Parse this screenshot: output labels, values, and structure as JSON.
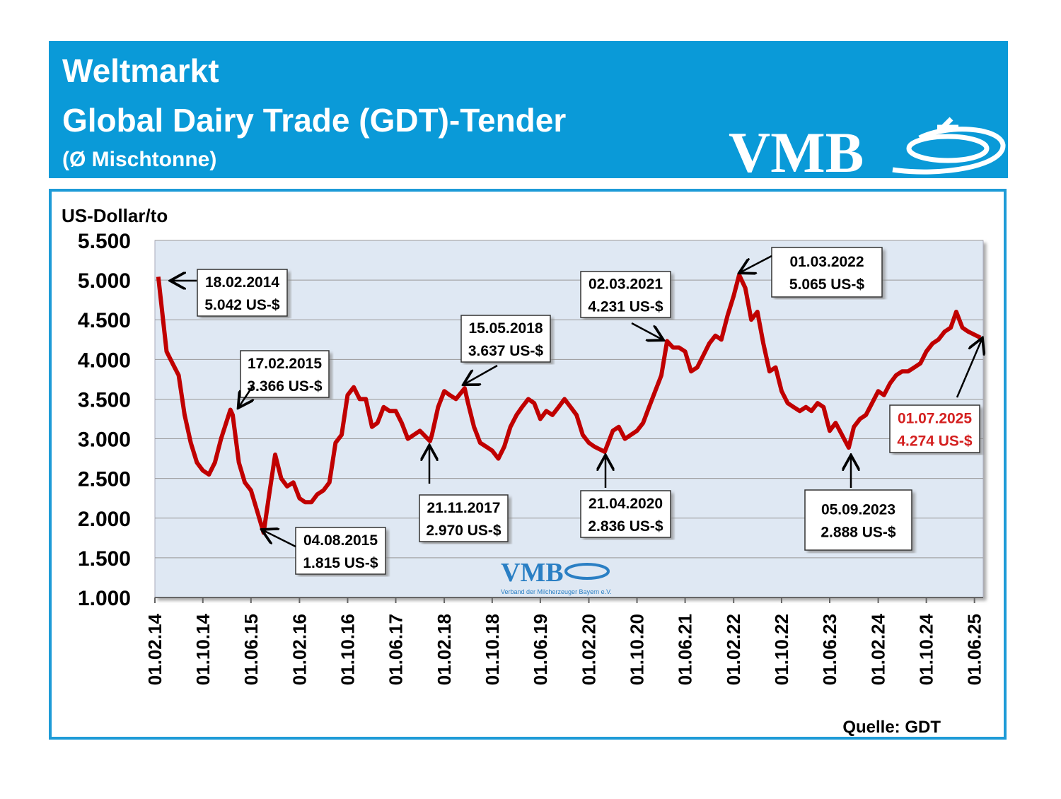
{
  "header": {
    "title": "Weltmarkt",
    "subtitle": "Global Dairy Trade (GDT)-Tender",
    "note": "(Ø Mischtonne)",
    "logo": "VMB"
  },
  "chart_data": {
    "type": "line",
    "y_label": "US-Dollar/to",
    "source": "Quelle: GDT",
    "watermark": {
      "logo": "VMB",
      "caption": "Verband der Milcherzeuger Bayern e.V."
    },
    "color": "#c00000",
    "grid": true,
    "x": [
      "18.02.14",
      "01.03.14",
      "01.04.14",
      "01.05.14",
      "01.06.14",
      "01.07.14",
      "01.08.14",
      "01.09.14",
      "01.10.14",
      "01.11.14",
      "01.12.14",
      "01.01.15",
      "17.02.15",
      "01.03.15",
      "01.04.15",
      "01.05.15",
      "01.06.15",
      "01.07.15",
      "04.08.15",
      "01.09.15",
      "01.10.15",
      "01.11.15",
      "01.12.15",
      "01.01.16",
      "01.02.16",
      "01.03.16",
      "01.04.16",
      "01.05.16",
      "01.06.16",
      "01.07.16",
      "01.08.16",
      "01.09.16",
      "01.10.16",
      "01.11.16",
      "01.12.16",
      "01.01.17",
      "01.02.17",
      "01.03.17",
      "01.04.17",
      "01.05.17",
      "01.06.17",
      "01.07.17",
      "01.08.17",
      "01.09.17",
      "01.10.17",
      "21.11.17",
      "01.12.17",
      "01.01.18",
      "01.02.18",
      "01.03.18",
      "01.04.18",
      "15.05.18",
      "01.06.18",
      "01.07.18",
      "01.08.18",
      "01.09.18",
      "01.10.18",
      "01.11.18",
      "01.12.18",
      "01.01.19",
      "01.02.19",
      "01.03.19",
      "01.04.19",
      "01.05.19",
      "01.06.19",
      "01.07.19",
      "01.08.19",
      "01.09.19",
      "01.10.19",
      "01.11.19",
      "01.12.19",
      "01.01.20",
      "01.02.20",
      "01.03.20",
      "21.04.20",
      "01.05.20",
      "01.06.20",
      "01.07.20",
      "01.08.20",
      "01.09.20",
      "01.10.20",
      "01.11.20",
      "01.12.20",
      "01.01.21",
      "01.02.21",
      "02.03.21",
      "01.04.21",
      "01.05.21",
      "01.06.21",
      "01.07.21",
      "01.08.21",
      "01.09.21",
      "01.10.21",
      "01.11.21",
      "01.12.21",
      "01.01.22",
      "01.02.22",
      "01.03.22",
      "01.04.22",
      "01.05.22",
      "01.06.22",
      "01.07.22",
      "01.08.22",
      "01.09.22",
      "01.10.22",
      "01.11.22",
      "01.12.22",
      "01.01.23",
      "01.02.23",
      "01.03.23",
      "01.04.23",
      "01.05.23",
      "01.06.23",
      "01.07.23",
      "05.09.23",
      "01.10.23",
      "01.11.23",
      "01.12.23",
      "01.01.24",
      "01.02.24",
      "01.03.24",
      "01.04.24",
      "01.05.24",
      "01.06.24",
      "01.07.24",
      "01.08.24",
      "01.09.24",
      "01.10.24",
      "01.11.24",
      "01.12.24",
      "01.01.25",
      "01.02.25",
      "01.03.25",
      "01.04.25",
      "01.05.25",
      "01.07.25"
    ],
    "values": [
      5042,
      4800,
      4100,
      3950,
      3800,
      3300,
      2950,
      2700,
      2600,
      2550,
      2700,
      3000,
      3366,
      3300,
      2700,
      2450,
      2350,
      2100,
      1815,
      2300,
      2800,
      2500,
      2400,
      2450,
      2250,
      2200,
      2200,
      2300,
      2350,
      2450,
      2950,
      3050,
      3550,
      3650,
      3500,
      3500,
      3150,
      3200,
      3400,
      3350,
      3350,
      3200,
      3000,
      3050,
      3100,
      2970,
      3050,
      3400,
      3600,
      3550,
      3500,
      3637,
      3450,
      3150,
      2950,
      2900,
      2850,
      2750,
      2900,
      3150,
      3300,
      3400,
      3500,
      3450,
      3250,
      3350,
      3300,
      3400,
      3500,
      3400,
      3300,
      3050,
      2950,
      2900,
      2836,
      2900,
      3100,
      3150,
      3000,
      3050,
      3100,
      3200,
      3400,
      3600,
      3800,
      4231,
      4150,
      4150,
      4100,
      3850,
      3900,
      4050,
      4200,
      4300,
      4250,
      4550,
      4800,
      5065,
      4900,
      4500,
      4600,
      4200,
      3850,
      3900,
      3600,
      3450,
      3400,
      3350,
      3400,
      3350,
      3450,
      3400,
      3100,
      3200,
      2888,
      3150,
      3250,
      3300,
      3450,
      3600,
      3550,
      3700,
      3800,
      3850,
      3850,
      3900,
      3950,
      4100,
      4200,
      4250,
      4350,
      4400,
      4600,
      4400,
      4350,
      4274
    ],
    "xlim": [
      "01.02.14",
      "15.07.25"
    ],
    "xticks": [
      "01.02.14",
      "01.10.14",
      "01.06.15",
      "01.02.16",
      "01.10.16",
      "01.06.17",
      "01.02.18",
      "01.10.18",
      "01.06.19",
      "01.02.20",
      "01.10.20",
      "01.06.21",
      "01.02.22",
      "01.10.22",
      "01.06.23",
      "01.02.24",
      "01.10.24",
      "01.06.25"
    ],
    "ylim": [
      1000,
      5500
    ],
    "yticks": [
      {
        "value": 1000,
        "label": "1.000"
      },
      {
        "value": 1500,
        "label": "1.500"
      },
      {
        "value": 2000,
        "label": "2.000"
      },
      {
        "value": 2500,
        "label": "2.500"
      },
      {
        "value": 3000,
        "label": "3.000"
      },
      {
        "value": 3500,
        "label": "3.500"
      },
      {
        "value": 4000,
        "label": "4.000"
      },
      {
        "value": 4500,
        "label": "4.500"
      },
      {
        "value": 5000,
        "label": "5.000"
      },
      {
        "value": 5500,
        "label": "5.500"
      }
    ],
    "annotations": [
      {
        "date": "18.02.2014",
        "label": "5.042 US-$"
      },
      {
        "date": "17.02.2015",
        "label": "3.366 US-$"
      },
      {
        "date": "04.08.2015",
        "label": "1.815 US-$"
      },
      {
        "date": "21.11.2017",
        "label": "2.970 US-$"
      },
      {
        "date": "15.05.2018",
        "label": "3.637 US-$"
      },
      {
        "date": "02.03.2021",
        "label": "4.231 US-$"
      },
      {
        "date": "21.04.2020",
        "label": "2.836 US-$"
      },
      {
        "date": "01.03.2022",
        "label": "5.065 US-$"
      },
      {
        "date": "05.09.2023",
        "label": "2.888 US-$"
      },
      {
        "date": "01.07.2025",
        "label": "4.274 US-$",
        "color": "#d42020"
      }
    ]
  }
}
